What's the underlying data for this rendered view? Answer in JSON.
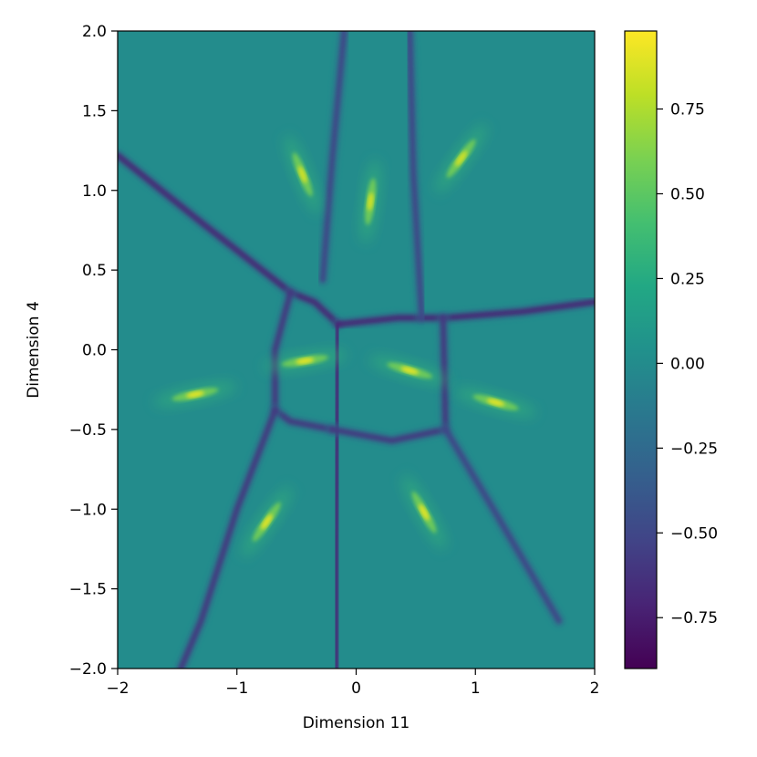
{
  "chart_data": {
    "type": "heatmap",
    "title": "",
    "xlabel": "Dimension 11",
    "ylabel": "Dimension 4",
    "xlim": [
      -2,
      2
    ],
    "ylim": [
      -2,
      2
    ],
    "x_ticks": [
      -2,
      -1,
      0,
      1,
      2
    ],
    "x_tick_labels": [
      "−2",
      "−1",
      "0",
      "1",
      "2"
    ],
    "y_ticks": [
      -2.0,
      -1.5,
      -1.0,
      -0.5,
      0.0,
      0.5,
      1.0,
      1.5,
      2.0
    ],
    "y_tick_labels": [
      "−2.0",
      "−1.5",
      "−1.0",
      "−0.5",
      "0.0",
      "0.5",
      "1.0",
      "1.5",
      "2.0"
    ],
    "colorbar": {
      "colormap": "viridis",
      "range": [
        -0.9,
        0.98
      ],
      "ticks": [
        -0.75,
        -0.5,
        -0.25,
        0.0,
        0.25,
        0.5,
        0.75
      ],
      "tick_labels": [
        "−0.75",
        "−0.50",
        "−0.25",
        "0.00",
        "0.25",
        "0.50",
        "0.75"
      ]
    },
    "background_value": 0.0,
    "peaks": [
      {
        "x": -0.45,
        "y": 1.1,
        "value": 0.85
      },
      {
        "x": 0.12,
        "y": 0.93,
        "value": 0.85
      },
      {
        "x": 0.88,
        "y": 1.2,
        "value": 0.85
      },
      {
        "x": -1.35,
        "y": -0.28,
        "value": 0.9
      },
      {
        "x": -0.43,
        "y": -0.07,
        "value": 0.9
      },
      {
        "x": 0.45,
        "y": -0.13,
        "value": 0.9
      },
      {
        "x": 1.17,
        "y": -0.33,
        "value": 0.9
      },
      {
        "x": -0.75,
        "y": -1.08,
        "value": 0.9
      },
      {
        "x": 0.57,
        "y": -1.02,
        "value": 0.9
      }
    ],
    "ridges": [
      {
        "value": -0.7,
        "points": [
          [
            -2.0,
            1.22
          ],
          [
            -1.3,
            0.8
          ],
          [
            -0.55,
            0.36
          ],
          [
            -0.35,
            0.3
          ],
          [
            -0.15,
            0.16
          ]
        ]
      },
      {
        "value": -0.7,
        "points": [
          [
            -0.15,
            0.16
          ],
          [
            0.35,
            0.2
          ],
          [
            0.75,
            0.2
          ],
          [
            1.4,
            0.24
          ],
          [
            2.0,
            0.3
          ]
        ]
      },
      {
        "value": -0.7,
        "points": [
          [
            -0.15,
            0.16
          ],
          [
            -0.16,
            -0.45
          ],
          [
            -0.17,
            -1.2
          ],
          [
            -0.17,
            -2.0
          ]
        ]
      },
      {
        "value": -0.6,
        "points": [
          [
            -0.55,
            0.36
          ],
          [
            -0.68,
            0.0
          ],
          [
            -0.68,
            -0.38
          ],
          [
            -0.55,
            -0.45
          ],
          [
            -0.2,
            -0.5
          ]
        ]
      },
      {
        "value": -0.6,
        "points": [
          [
            -0.2,
            -0.5
          ],
          [
            0.3,
            -0.57
          ],
          [
            0.75,
            -0.5
          ],
          [
            0.73,
            0.2
          ]
        ]
      },
      {
        "value": -0.6,
        "points": [
          [
            -0.68,
            -0.38
          ],
          [
            -1.0,
            -1.0
          ],
          [
            -1.3,
            -1.7
          ],
          [
            -1.47,
            -2.0
          ]
        ]
      },
      {
        "value": -0.5,
        "points": [
          [
            0.75,
            -0.5
          ],
          [
            1.15,
            -1.0
          ],
          [
            1.7,
            -1.7
          ]
        ]
      },
      {
        "value": -0.5,
        "points": [
          [
            -0.28,
            0.44
          ],
          [
            -0.2,
            1.2
          ],
          [
            -0.1,
            2.0
          ]
        ]
      },
      {
        "value": -0.5,
        "points": [
          [
            0.55,
            0.2
          ],
          [
            0.48,
            1.1
          ],
          [
            0.45,
            2.0
          ]
        ]
      }
    ]
  }
}
